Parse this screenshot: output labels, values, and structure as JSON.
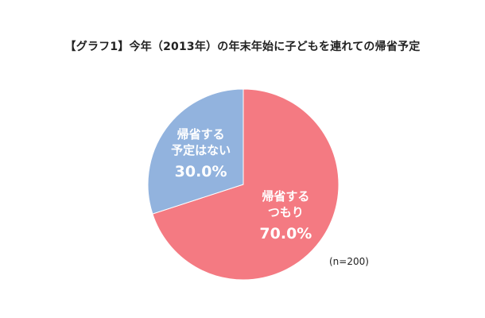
{
  "chart_data": {
    "type": "pie",
    "title": "【グラフ1】今年（2013年）の年末年始に子どもを連れての帰省予定",
    "slices": [
      {
        "label_lines": [
          "帰省する",
          "つもり"
        ],
        "value": 70.0,
        "value_label": "70.0%",
        "color": "#f47a82"
      },
      {
        "label_lines": [
          "帰省する",
          "予定はない"
        ],
        "value": 30.0,
        "value_label": "30.0%",
        "color": "#92b3de"
      }
    ],
    "note": "(n=200)",
    "start_angle_deg": 0,
    "direction": "clockwise"
  }
}
